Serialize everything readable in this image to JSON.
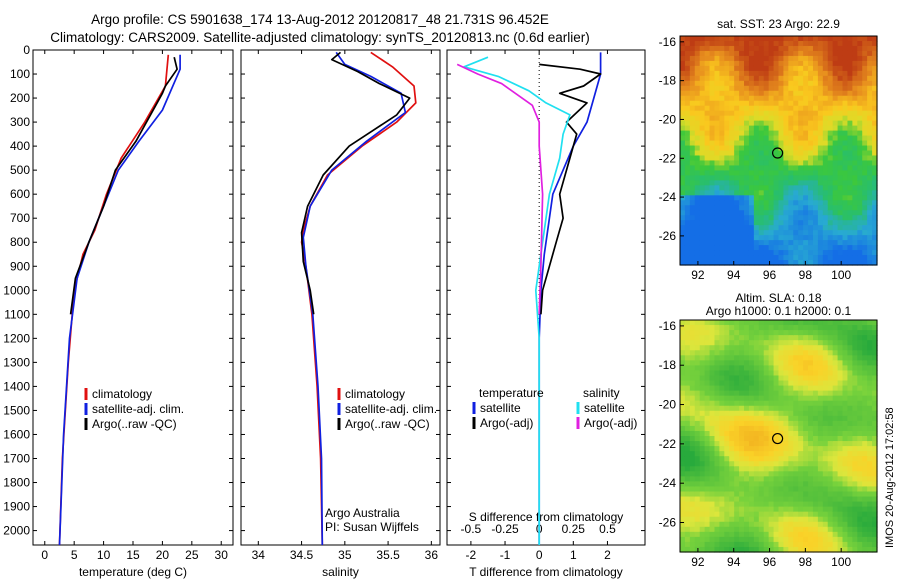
{
  "title_lines": [
    "Argo profile: CS 5901638_174 13-Aug-2012 20120817_48 21.731S 96.452E",
    "Climatology: CARS2009. Satellite-adjusted climatology: synTS_20120813.nc (0.6d earlier)"
  ],
  "footer": "IMOS 20-Aug-2012 17:02:58",
  "colors": {
    "climatology": "#e01010",
    "satellite": "#1020e0",
    "argo": "#000000",
    "sat_salinity": "#20e0f0",
    "argo_salinity": "#e020e0"
  },
  "chart_data": [
    {
      "type": "line",
      "xlabel": "temperature (deg C)",
      "ylabel": "",
      "xlim": [
        -2,
        32
      ],
      "ylim": [
        2060,
        0
      ],
      "x_ticks": [
        "0",
        "5",
        "10",
        "15",
        "20",
        "25",
        "30"
      ],
      "y_ticks": [
        "0",
        "100",
        "200",
        "300",
        "400",
        "500",
        "600",
        "700",
        "800",
        "900",
        "1000",
        "1100",
        "1200",
        "1300",
        "1400",
        "1500",
        "1600",
        "1700",
        "1800",
        "1900",
        "2000"
      ],
      "legend": [
        "climatology",
        "satellite-adj. clim.",
        "Argo(..raw -QC)"
      ],
      "series": [
        {
          "name": "climatology",
          "color": "#e01010",
          "points": [
            [
              21,
              20
            ],
            [
              20.5,
              150
            ],
            [
              17,
              300
            ],
            [
              13,
              450
            ],
            [
              10.5,
              600
            ],
            [
              8.5,
              750
            ],
            [
              6.5,
              850
            ],
            [
              5,
              1000
            ],
            [
              4,
              1300
            ],
            [
              3,
              1700
            ],
            [
              2.5,
              2060
            ]
          ]
        },
        {
          "name": "satellite-adj. clim.",
          "color": "#1020e0",
          "points": [
            [
              23,
              20
            ],
            [
              23,
              80
            ],
            [
              20,
              250
            ],
            [
              16,
              380
            ],
            [
              12.5,
              500
            ],
            [
              10,
              650
            ],
            [
              7.5,
              800
            ],
            [
              5.5,
              950
            ],
            [
              4.2,
              1200
            ],
            [
              3.2,
              1600
            ],
            [
              2.5,
              2060
            ]
          ]
        },
        {
          "name": "Argo(..raw -QC)",
          "color": "#000000",
          "points": [
            [
              22,
              30
            ],
            [
              22.5,
              80
            ],
            [
              20.5,
              150
            ],
            [
              20,
              180
            ],
            [
              15.5,
              380
            ],
            [
              12,
              500
            ],
            [
              10,
              650
            ],
            [
              7.5,
              800
            ],
            [
              5.2,
              950
            ],
            [
              4.4,
              1100
            ]
          ]
        }
      ]
    },
    {
      "type": "line",
      "xlabel": "salinity",
      "ylabel": "",
      "xlim": [
        33.8,
        36.1
      ],
      "ylim": [
        2060,
        0
      ],
      "x_ticks": [
        "34",
        "34.5",
        "35",
        "35.5",
        "36"
      ],
      "legend": [
        "climatology",
        "satellite-adj. clim.",
        "Argo(..raw -QC)"
      ],
      "annotation": [
        "Argo Australia",
        "PI: Susan Wijffels"
      ],
      "series": [
        {
          "name": "climatology",
          "color": "#e01010",
          "points": [
            [
              35.3,
              10
            ],
            [
              35.55,
              70
            ],
            [
              35.8,
              150
            ],
            [
              35.82,
              220
            ],
            [
              35.6,
              300
            ],
            [
              35.2,
              400
            ],
            [
              34.8,
              520
            ],
            [
              34.6,
              650
            ],
            [
              34.52,
              750
            ],
            [
              34.5,
              800
            ],
            [
              34.55,
              900
            ],
            [
              34.62,
              1100
            ],
            [
              34.68,
              1400
            ],
            [
              34.72,
              1700
            ],
            [
              34.74,
              2060
            ]
          ]
        },
        {
          "name": "satellite-adj. clim.",
          "color": "#1020e0",
          "points": [
            [
              34.9,
              10
            ],
            [
              35.0,
              60
            ],
            [
              35.3,
              110
            ],
            [
              35.65,
              180
            ],
            [
              35.7,
              260
            ],
            [
              35.25,
              380
            ],
            [
              34.85,
              500
            ],
            [
              34.6,
              650
            ],
            [
              34.52,
              780
            ],
            [
              34.55,
              900
            ],
            [
              34.63,
              1100
            ],
            [
              34.69,
              1400
            ],
            [
              34.73,
              1700
            ],
            [
              34.74,
              2060
            ]
          ]
        },
        {
          "name": "Argo(..raw -QC)",
          "color": "#000000",
          "points": [
            [
              34.95,
              10
            ],
            [
              34.85,
              40
            ],
            [
              35.15,
              90
            ],
            [
              35.4,
              140
            ],
            [
              35.75,
              200
            ],
            [
              35.6,
              270
            ],
            [
              35.05,
              400
            ],
            [
              34.75,
              520
            ],
            [
              34.57,
              650
            ],
            [
              34.5,
              760
            ],
            [
              34.52,
              880
            ],
            [
              34.6,
              1000
            ],
            [
              34.64,
              1100
            ]
          ]
        }
      ]
    },
    {
      "type": "line",
      "xlabel": "T difference from climatology",
      "x_top_label": "S difference from climatology",
      "xlim": [
        -2.7,
        3.1
      ],
      "ylim": [
        2060,
        0
      ],
      "x_ticks": [
        "-2",
        "-1",
        "0",
        "1",
        "2"
      ],
      "x_top_ticks": [
        "-0.5",
        "-0.25",
        "0",
        "0.25",
        "0.5"
      ],
      "legend": [
        "temperature",
        "satellite",
        "Argo(-adj)",
        "salinity",
        "satellite",
        "Argo(-adj)"
      ],
      "series": [
        {
          "name": "satellite",
          "color": "#1020e0",
          "points": [
            [
              1.8,
              10
            ],
            [
              1.8,
              100
            ],
            [
              1.6,
              200
            ],
            [
              1.4,
              300
            ],
            [
              1,
              400
            ],
            [
              0.7,
              500
            ],
            [
              0.4,
              600
            ],
            [
              0.3,
              700
            ],
            [
              0.15,
              850
            ],
            [
              0.05,
              1000
            ],
            [
              0,
              1200
            ],
            [
              0,
              2060
            ]
          ]
        },
        {
          "name": "Argo(-adj)",
          "color": "#000000",
          "points": [
            [
              0,
              60
            ],
            [
              1.2,
              80
            ],
            [
              1.8,
              100
            ],
            [
              1.3,
              150
            ],
            [
              0.6,
              180
            ],
            [
              1.4,
              220
            ],
            [
              0.8,
              300
            ],
            [
              1.1,
              350
            ],
            [
              0.9,
              450
            ],
            [
              0.6,
              600
            ],
            [
              0.7,
              700
            ],
            [
              0.5,
              800
            ],
            [
              0.3,
              900
            ],
            [
              0.1,
              1000
            ],
            [
              0.05,
              1100
            ]
          ]
        },
        {
          "name": "satellite",
          "color": "#20e0f0",
          "points": [
            [
              -1.5,
              30
            ],
            [
              -2.2,
              70
            ],
            [
              -1.2,
              110
            ],
            [
              -0.3,
              170
            ],
            [
              0.2,
              220
            ],
            [
              0.9,
              270
            ],
            [
              0.7,
              350
            ],
            [
              0.6,
              450
            ],
            [
              0.3,
              600
            ],
            [
              0.1,
              800
            ],
            [
              -0.1,
              1000
            ],
            [
              0,
              1200
            ],
            [
              0,
              2060
            ]
          ]
        },
        {
          "name": "Argo(-adj)",
          "color": "#e020e0",
          "points": [
            [
              -2.4,
              60
            ],
            [
              -1.8,
              100
            ],
            [
              -1.1,
              140
            ],
            [
              -0.6,
              190
            ],
            [
              -0.2,
              230
            ],
            [
              0,
              300
            ],
            [
              0,
              400
            ],
            [
              0.1,
              600
            ],
            [
              0.05,
              900
            ],
            [
              0,
              1100
            ]
          ]
        }
      ]
    },
    {
      "type": "heatmap",
      "title": "sat. SST: 23 Argo: 22.9",
      "xlim": [
        91,
        102
      ],
      "ylim": [
        -27.5,
        -15.7
      ],
      "x_ticks": [
        "92",
        "94",
        "96",
        "98",
        "100"
      ],
      "y_ticks": [
        "-16",
        "-18",
        "-20",
        "-22",
        "-24",
        "-26"
      ],
      "marker": [
        96.45,
        -21.73
      ]
    },
    {
      "type": "heatmap",
      "title": "Altim. SLA: 0.18",
      "subtitle": "Argo h1000: 0.1 h2000: 0.1",
      "xlim": [
        91,
        102
      ],
      "ylim": [
        -27.5,
        -15.7
      ],
      "x_ticks": [
        "92",
        "94",
        "96",
        "98",
        "100"
      ],
      "y_ticks": [
        "-16",
        "-18",
        "-20",
        "-22",
        "-24",
        "-26"
      ],
      "marker": [
        96.45,
        -21.73
      ]
    }
  ]
}
